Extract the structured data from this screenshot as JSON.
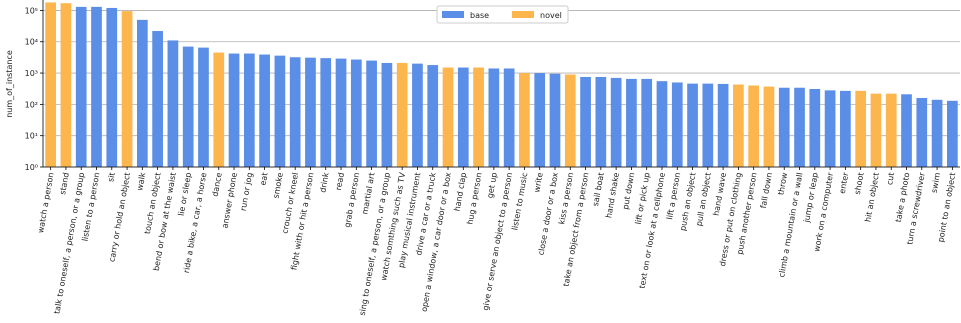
{
  "chart_data": {
    "type": "bar",
    "ylabel": "num_of_instance",
    "log_scale": true,
    "grid": true,
    "legend_position": "top",
    "categories": [
      "watch a person",
      "stand",
      "talk to oneself, a person, or a group",
      "listen to a person",
      "sit",
      "carry or hold an object",
      "walk",
      "touch an object",
      "bend or bow at the waist",
      "lie or sleep",
      "ride a bike, a car, a horse",
      "dance",
      "answer phone",
      "run or jog",
      "eat",
      "smoke",
      "crouch or kneel",
      "fight with or hit a person",
      "drink",
      "read",
      "grab a person",
      "martial art",
      "sing to oneself, a person, or a group",
      "watch somthing such as TV",
      "play musical instrument",
      "drive a car or a truck",
      "open a window, a car door or a box",
      "hand clap",
      "hug a person",
      "get up",
      "give or serve an object to a person",
      "listen to music",
      "write",
      "close a door or a box",
      "kiss a person",
      "take an object from a person",
      "sail boat",
      "hand shake",
      "put down",
      "lift or pick up",
      "text on or look at a cellphone",
      "lift a person",
      "push an object",
      "pull an object",
      "hand wave",
      "dress or put on clothing",
      "push another person",
      "fall down",
      "throw",
      "climb a mountain or a wall",
      "jump or leap",
      "work on a computer",
      "enter",
      "shoot",
      "hit an object",
      "cut",
      "take a photo",
      "turn a screwdriver",
      "swim",
      "point to an object"
    ],
    "series": [
      {
        "name": "base",
        "color": "#5b8ee6",
        "values": [
          null,
          null,
          130000,
          130000,
          120000,
          null,
          50000,
          22000,
          11000,
          7000,
          6500,
          null,
          4200,
          4200,
          3900,
          3600,
          3200,
          3100,
          3000,
          2900,
          2700,
          2500,
          2100,
          null,
          2000,
          1800,
          null,
          1500,
          null,
          1400,
          1400,
          null,
          1000,
          950,
          null,
          750,
          750,
          700,
          650,
          650,
          550,
          500,
          460,
          460,
          450,
          null,
          null,
          null,
          340,
          340,
          310,
          280,
          270,
          null,
          null,
          null,
          210,
          160,
          140,
          130
        ]
      },
      {
        "name": "novel",
        "color": "#fdb54e",
        "values": [
          180000,
          170000,
          null,
          null,
          null,
          95000,
          null,
          null,
          null,
          null,
          null,
          4500,
          null,
          null,
          null,
          null,
          null,
          null,
          null,
          null,
          null,
          null,
          null,
          2100,
          null,
          null,
          1500,
          null,
          1500,
          null,
          null,
          1000,
          null,
          null,
          900,
          null,
          null,
          null,
          null,
          null,
          null,
          null,
          null,
          null,
          null,
          430,
          400,
          370,
          null,
          null,
          null,
          null,
          null,
          270,
          220,
          220,
          null,
          null,
          null,
          null
        ]
      }
    ],
    "ylim": [
      1,
      200000
    ],
    "yticks": [
      {
        "value": 1,
        "label": "10⁰"
      },
      {
        "value": 10,
        "label": "10¹"
      },
      {
        "value": 100,
        "label": "10²"
      },
      {
        "value": 1000,
        "label": "10³"
      },
      {
        "value": 10000,
        "label": "10⁴"
      },
      {
        "value": 100000,
        "label": "10⁵"
      }
    ]
  }
}
